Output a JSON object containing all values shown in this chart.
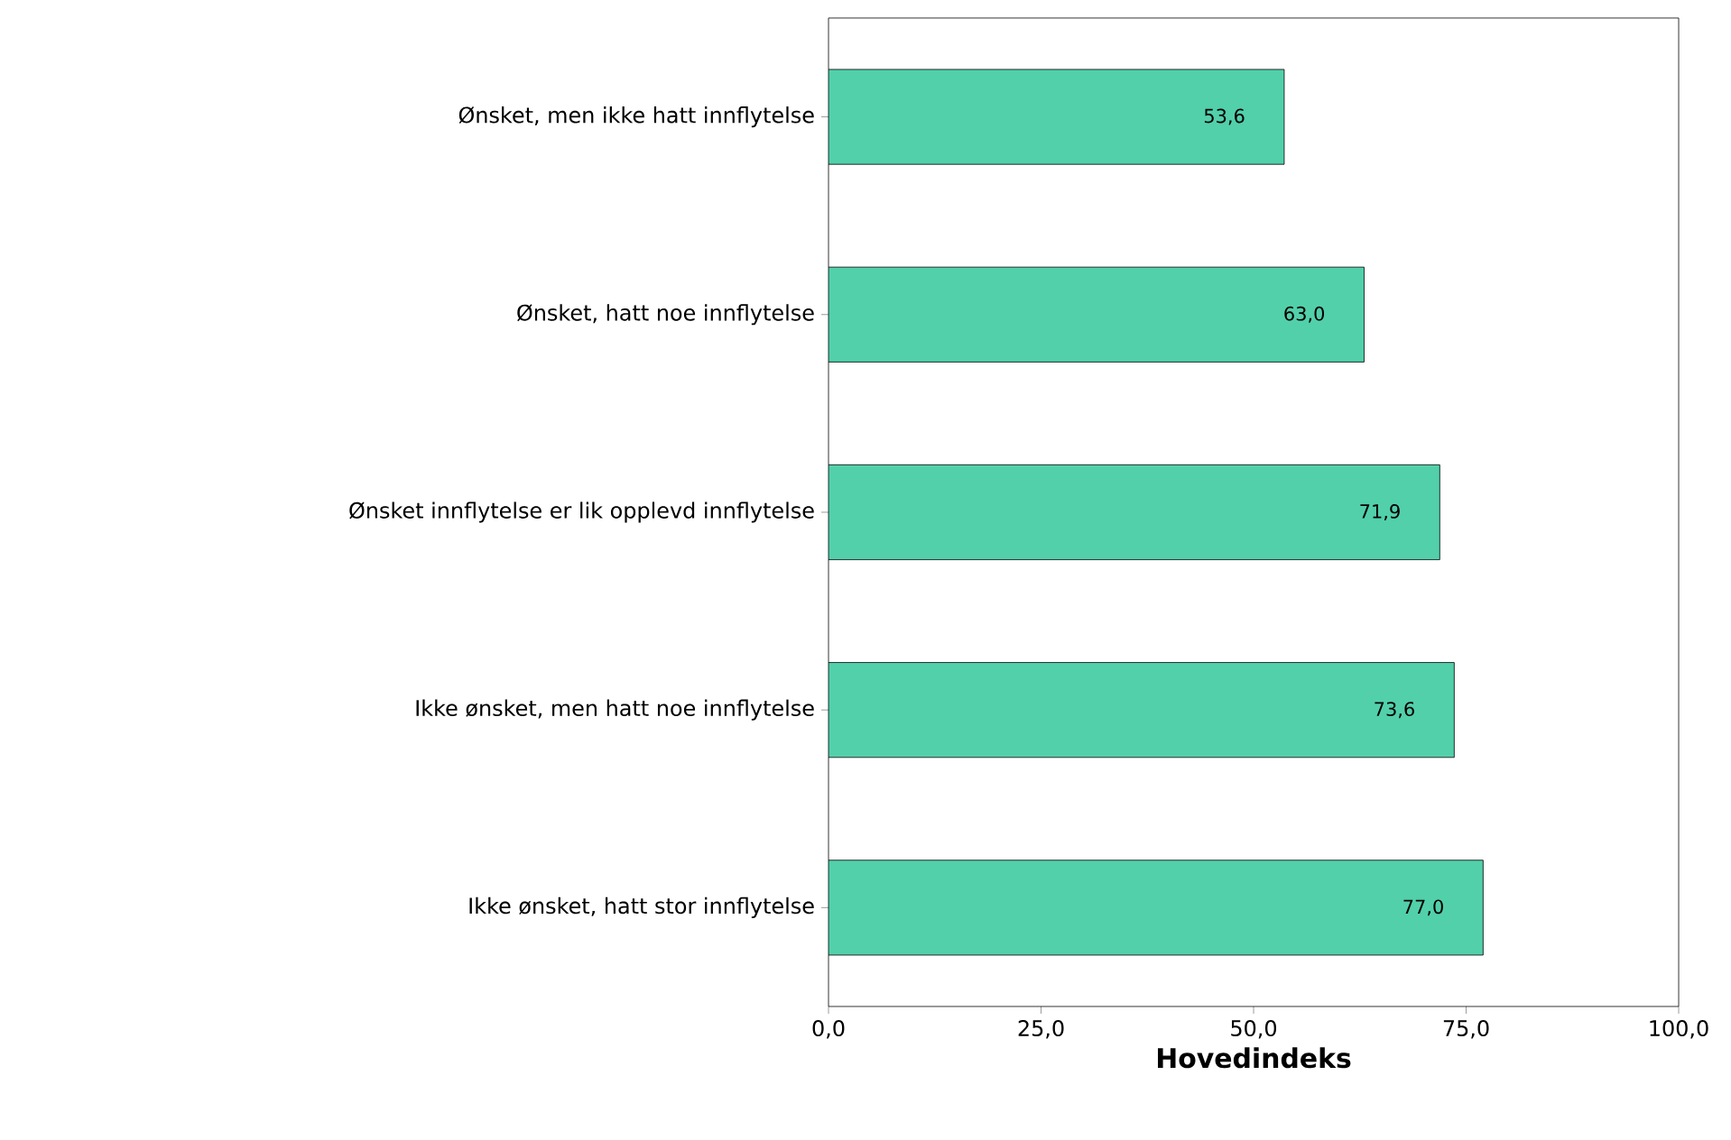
{
  "chart_data": {
    "type": "bar",
    "orientation": "horizontal",
    "xlabel": "**Hovedindeks**",
    "categories": [
      "Ønsket, men ikke hatt innflytelse",
      "Ønsket, hatt noe innflytelse",
      "Ønsket innflytelse er lik opplevd innflytelse",
      "Ikke ønsket, men hatt noe innflytelse",
      "Ikke ønsket, hatt stor innflytelse"
    ],
    "values": [
      53.6,
      63.0,
      71.9,
      73.6,
      77.0
    ],
    "value_labels": [
      "53,6",
      "63,0",
      "71,9",
      "73,6",
      "77,0"
    ],
    "color": "#52d0aa",
    "xlim": [
      0,
      100
    ],
    "xticks": [
      {
        "value": 0,
        "label": "0,0"
      },
      {
        "value": 25,
        "label": "25,0"
      },
      {
        "value": 50,
        "label": "50,0"
      },
      {
        "value": 75,
        "label": "75,0"
      },
      {
        "value": 100,
        "label": "100,0"
      }
    ],
    "grid": false
  }
}
